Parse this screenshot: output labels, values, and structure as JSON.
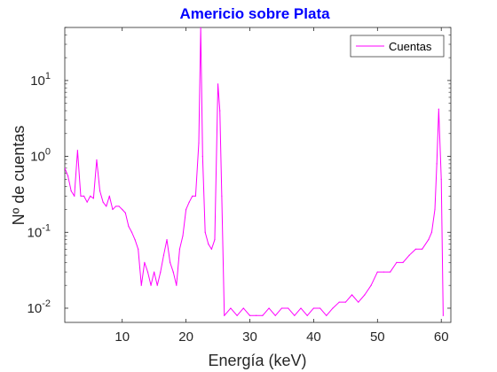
{
  "chart_data": {
    "type": "line",
    "title": "Americio sobre Plata",
    "xlabel": "Energía (keV)",
    "ylabel": "Nº de cuentas",
    "yscale": "log",
    "xlim": [
      1,
      61.5
    ],
    "ylim": [
      0.0065,
      50
    ],
    "x_ticks": [
      "10",
      "20",
      "30",
      "40",
      "50",
      "60"
    ],
    "y_ticks": [
      {
        "base": "10",
        "exp": "-2",
        "value": 0.01
      },
      {
        "base": "10",
        "exp": "-1",
        "value": 0.1
      },
      {
        "base": "10",
        "exp": "0",
        "value": 1
      },
      {
        "base": "10",
        "exp": "1",
        "value": 10
      }
    ],
    "grid": false,
    "legend": {
      "position": "top-right",
      "entries": [
        "Cuentas"
      ]
    },
    "colors": {
      "title": "#0000ff",
      "series": "#ff00ff",
      "axes": "#262626"
    },
    "series": [
      {
        "name": "Cuentas",
        "x": [
          1.0,
          1.5,
          2.0,
          2.5,
          3.0,
          3.5,
          4.0,
          4.5,
          5.0,
          5.5,
          6.0,
          6.5,
          7.0,
          7.5,
          8.0,
          8.5,
          9.0,
          9.5,
          10.0,
          10.5,
          11.0,
          11.5,
          12.0,
          12.5,
          13.0,
          13.5,
          14.0,
          14.5,
          15.0,
          15.5,
          16.0,
          16.5,
          17.0,
          17.5,
          18.0,
          18.5,
          19.0,
          19.5,
          20.0,
          20.5,
          21.0,
          21.5,
          22.0,
          22.3,
          22.6,
          23.0,
          23.5,
          24.0,
          24.5,
          25.0,
          25.3,
          25.6,
          26.0,
          27.0,
          28.0,
          29.0,
          30.0,
          31.0,
          32.0,
          33.0,
          34.0,
          35.0,
          36.0,
          37.0,
          38.0,
          39.0,
          40.0,
          41.0,
          42.0,
          43.0,
          44.0,
          45.0,
          46.0,
          47.0,
          48.0,
          49.0,
          50.0,
          51.0,
          52.0,
          53.0,
          54.0,
          55.0,
          56.0,
          57.0,
          58.0,
          58.5,
          59.0,
          59.3,
          59.6,
          60.0,
          60.3
        ],
        "values": [
          0.7,
          0.55,
          0.35,
          0.3,
          1.2,
          0.3,
          0.3,
          0.25,
          0.3,
          0.28,
          0.9,
          0.35,
          0.25,
          0.22,
          0.3,
          0.2,
          0.22,
          0.22,
          0.2,
          0.18,
          0.12,
          0.1,
          0.08,
          0.06,
          0.02,
          0.04,
          0.03,
          0.02,
          0.03,
          0.02,
          0.03,
          0.05,
          0.08,
          0.04,
          0.03,
          0.02,
          0.06,
          0.09,
          0.2,
          0.25,
          0.3,
          0.3,
          1.5,
          50,
          1.0,
          0.1,
          0.07,
          0.06,
          0.08,
          9.0,
          4.0,
          0.3,
          0.008,
          0.01,
          0.008,
          0.01,
          0.008,
          0.008,
          0.008,
          0.01,
          0.008,
          0.01,
          0.01,
          0.008,
          0.01,
          0.008,
          0.01,
          0.01,
          0.008,
          0.01,
          0.012,
          0.012,
          0.015,
          0.012,
          0.015,
          0.02,
          0.03,
          0.03,
          0.03,
          0.04,
          0.04,
          0.05,
          0.06,
          0.06,
          0.08,
          0.1,
          0.2,
          0.8,
          4.2,
          0.5,
          0.008
        ]
      }
    ]
  }
}
